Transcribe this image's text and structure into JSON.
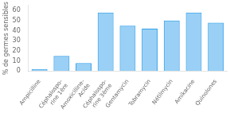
{
  "chart_data": {
    "type": "bar",
    "categories": [
      "Ampicilline",
      "Céphalospo-\nrine 1ère",
      "Amoxicilline-\nAcide",
      "Céphalospo-\nrine 3ème",
      "Gentamycin",
      "Tobramycin",
      "Nétilmycin",
      "Amikacine",
      "Quinolones"
    ],
    "values": [
      2,
      15,
      8,
      58,
      45,
      42,
      50,
      58,
      48
    ],
    "ylabel": "% de germes sensibles",
    "ylim": [
      0,
      65
    ],
    "yticks": [
      0,
      10,
      20,
      30,
      40,
      50,
      60
    ],
    "grid": false
  }
}
